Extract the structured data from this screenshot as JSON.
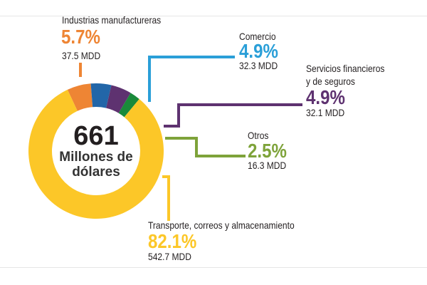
{
  "chart_data": {
    "type": "pie",
    "variant": "donut",
    "center_total": "661",
    "center_label": "Millones de dólares",
    "unit": "MDD",
    "slices": [
      {
        "label": "Industrias manufactureras",
        "percent_label": "5.7%",
        "percent": 5.7,
        "value_label": "37.5 MDD",
        "value": 37.5,
        "slice_color": "#ee8534",
        "text_color": "#ee8534"
      },
      {
        "label": "Comercio",
        "percent_label": "4.9%",
        "percent": 4.9,
        "value_label": "32.3 MDD",
        "value": 32.3,
        "slice_color": "#2266a8",
        "text_color": "#2a9fd8"
      },
      {
        "label": "Servicios financieros y de seguros",
        "label_line1": "Servicios financieros",
        "label_line2": "y de seguros",
        "percent_label": "4.9%",
        "percent": 4.9,
        "value_label": "32.1 MDD",
        "value": 32.1,
        "slice_color": "#5e3270",
        "text_color": "#5e3270"
      },
      {
        "label": "Otros",
        "percent_label": "2.5%",
        "percent": 2.5,
        "value_label": "16.3 MDD",
        "value": 16.3,
        "slice_color": "#1a8a3a",
        "text_color": "#7ea33a"
      },
      {
        "label": "Transporte, correos y almacenamiento",
        "percent_label": "82.1%",
        "percent": 82.1,
        "value_label": "542.7 MDD",
        "value": 542.7,
        "slice_color": "#fcc728",
        "text_color": "#fcc728"
      }
    ]
  }
}
